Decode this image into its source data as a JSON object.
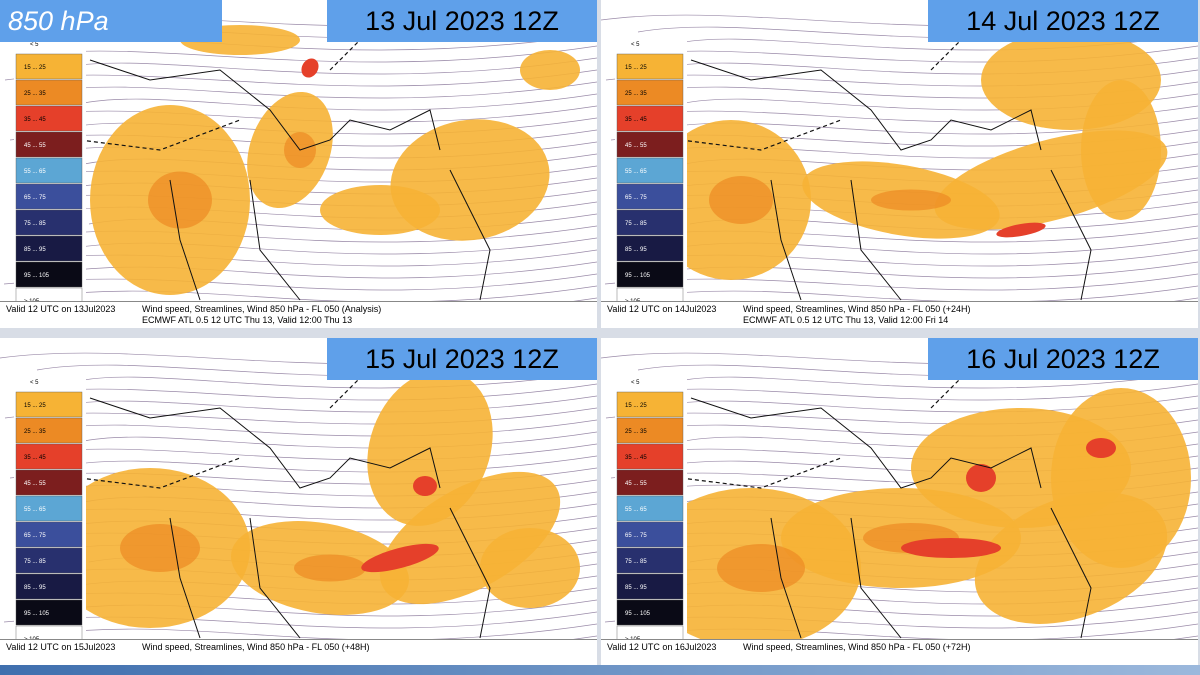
{
  "header_label": "850 hPa",
  "legend": {
    "min_label": "< 5",
    "items": [
      {
        "label": "15 ... 25",
        "color": "#f6b335"
      },
      {
        "label": "25 ... 35",
        "color": "#ec8a24"
      },
      {
        "label": "35 ... 45",
        "color": "#e5402a"
      },
      {
        "label": "45 ... 55",
        "color": "#7c1e1e"
      },
      {
        "label": "55 ... 65",
        "color": "#5ca6d4"
      },
      {
        "label": "65 ... 75",
        "color": "#3b4f9c"
      },
      {
        "label": "75 ... 85",
        "color": "#28306e"
      },
      {
        "label": "85 ... 95",
        "color": "#181a44"
      },
      {
        "label": "95 ... 105",
        "color": "#0a0a16"
      },
      {
        "label": "> 105",
        "color": "#ffffff"
      }
    ]
  },
  "panels": [
    {
      "title": "13 Jul 2023 12Z",
      "valid": "Valid 12 UTC on 13Jul2023",
      "lines": [
        "Wind speed, Streamlines, Wind  850 hPa - FL 050 (Analysis)",
        "ECMWF ATL 0.5 12 UTC Thu 13, Valid 12:00 Thu 13"
      ]
    },
    {
      "title": "14 Jul 2023 12Z",
      "valid": "Valid 12 UTC on 14Jul2023",
      "lines": [
        "Wind speed, Streamlines, Wind  850 hPa - FL 050 (+24H)",
        "ECMWF ATL 0.5 12 UTC Thu 13, Valid 12:00 Fri 14"
      ]
    },
    {
      "title": "15 Jul 2023 12Z",
      "valid": "Valid 12 UTC on 15Jul2023",
      "lines": [
        "Wind speed, Streamlines, Wind  850 hPa - FL 050 (+48H)"
      ]
    },
    {
      "title": "16 Jul 2023 12Z",
      "valid": "Valid 12 UTC on 16Jul2023",
      "lines": [
        "Wind speed, Streamlines, Wind  850 hPa - FL 050 (+72H)"
      ]
    }
  ]
}
